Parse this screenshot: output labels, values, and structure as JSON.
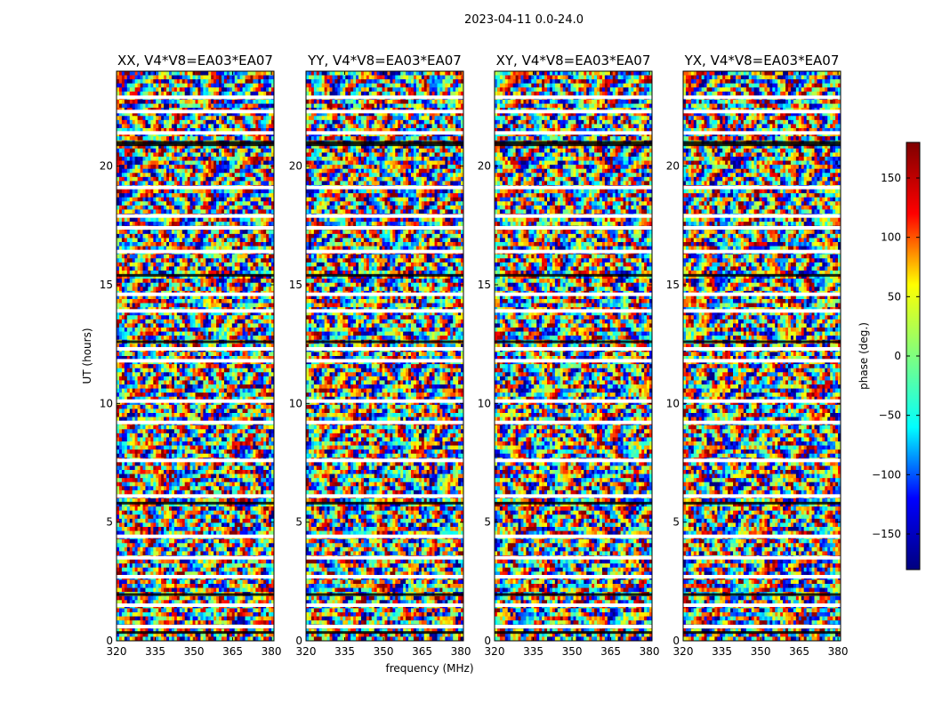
{
  "chart_data": {
    "type": "heatmap",
    "title": "2023-04-11 0.0-24.0",
    "xlabel": "frequency (MHz)",
    "ylabel": "UT (hours)",
    "xlim": [
      320,
      381
    ],
    "ylim": [
      0,
      24
    ],
    "xticks": [
      320,
      335,
      350,
      365,
      380
    ],
    "yticks": [
      0,
      5,
      10,
      15,
      20
    ],
    "panels": [
      {
        "title": "XX, V4*V8=EA03*EA07"
      },
      {
        "title": "YY, V4*V8=EA03*EA07"
      },
      {
        "title": "XY, V4*V8=EA03*EA07"
      },
      {
        "title": "YX, V4*V8=EA03*EA07"
      }
    ],
    "colorbar": {
      "label": "phase (deg.)",
      "range": [
        -180,
        180
      ],
      "ticks": [
        150,
        100,
        50,
        0,
        -50,
        -100,
        -150
      ],
      "colormap": "jet",
      "colors": [
        "#00007f",
        "#0000ff",
        "#00ffff",
        "#7fff7f",
        "#ffff00",
        "#ff0000",
        "#7f0000"
      ]
    },
    "blank_hours": [
      0.6,
      1.5,
      2.7,
      3.5,
      4.4,
      6.1,
      7.6,
      9.2,
      10.1,
      11.8,
      12.3,
      13.9,
      14.6,
      16.4,
      17.4,
      17.9,
      19.1,
      21.4,
      22.3,
      22.9
    ],
    "flagged_hours": [
      0.35,
      1.95,
      5.8,
      12.6,
      15.4,
      20.9,
      21.0
    ],
    "seed": 7
  }
}
